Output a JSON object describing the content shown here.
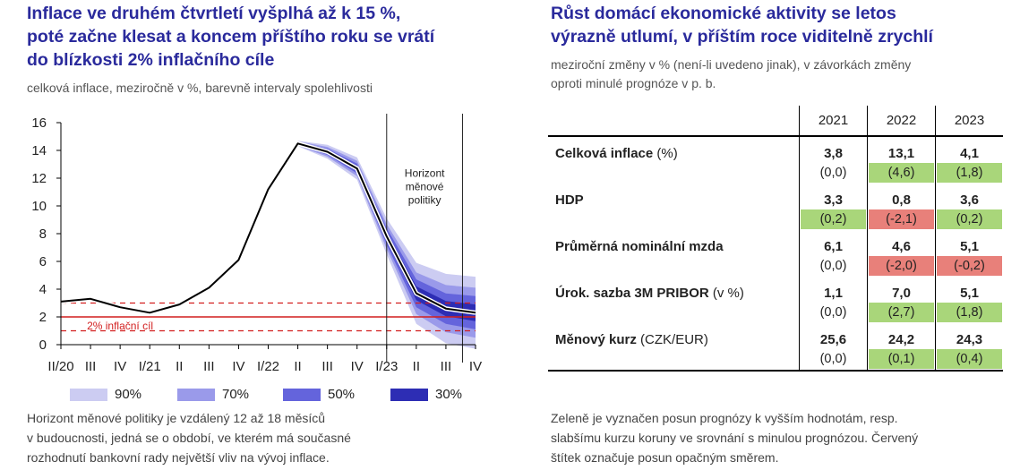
{
  "left": {
    "title_lines": [
      "Inflace ve druhém čtvrtletí vyšplhá až k 15 %,",
      "poté začne klesat a koncem příštího roku se vrátí",
      "do blízkosti 2% inflačního cíle"
    ],
    "subtitle": "celková inflace, meziročně v %, barevně intervaly spolehlivosti",
    "note_lines": [
      "Horizont měnové politiky je vzdálený 12 až 18 měsíců",
      "v budoucnosti, jedná se o období, ve kterém má současné",
      "rozhodnutí bankovní rady největší vliv na vývoj inflace."
    ]
  },
  "chart_data": {
    "type": "line",
    "x": [
      "II/20",
      "III",
      "IV",
      "I/21",
      "II",
      "III",
      "IV",
      "I/22",
      "II",
      "III",
      "IV",
      "I/23",
      "II",
      "III",
      "IV"
    ],
    "series": [
      {
        "values": [
          3.1,
          3.3,
          2.7,
          2.3,
          2.9,
          4.1,
          6.1,
          11.2,
          14.5,
          13.9,
          12.7,
          7.8,
          3.7,
          2.6,
          2.3
        ]
      }
    ],
    "bands": {
      "start_index": 8,
      "levels": [
        "90%",
        "70%",
        "50%",
        "30%"
      ],
      "colors": [
        "#ccccf2",
        "#9a9aea",
        "#6464dc",
        "#2d2db4"
      ],
      "half_widths": {
        "90%": [
          0.2,
          0.5,
          0.8,
          1.3,
          2.2,
          2.5,
          2.6
        ],
        "70%": [
          0.15,
          0.35,
          0.55,
          0.9,
          1.5,
          1.7,
          1.8
        ],
        "50%": [
          0.1,
          0.22,
          0.35,
          0.6,
          1.0,
          1.1,
          1.2
        ],
        "30%": [
          0.05,
          0.1,
          0.2,
          0.3,
          0.5,
          0.55,
          0.6
        ]
      }
    },
    "target": {
      "value": 2,
      "label": "2% inflační cíl",
      "tolerance": [
        1,
        3
      ],
      "color": "#d21e1e"
    },
    "horizon": {
      "label_lines": [
        "Horizont",
        "měnové",
        "politiky"
      ],
      "between_start": 11,
      "between_end": 14
    },
    "ylim": [
      0,
      16
    ],
    "yticks": [
      0,
      2,
      4,
      6,
      8,
      10,
      12,
      14,
      16
    ],
    "grid": false,
    "legend": {
      "placement": "bottom"
    }
  },
  "right": {
    "title_lines": [
      "Růst domácí ekonomické aktivity se letos",
      "výrazně utlumí, v příštím roce viditelně zrychlí"
    ],
    "subtitle_lines": [
      "meziroční změny v % (není-li uvedeno jinak), v závorkách změny",
      "oproti minulé prognóze v p. b."
    ],
    "years": [
      "2021",
      "2022",
      "2023"
    ],
    "rows": [
      {
        "label": "Celková inflace",
        "unit": "(%)",
        "values": [
          "3,8",
          "13,1",
          "4,1"
        ],
        "changes": [
          "(0,0)",
          "(4,6)",
          "(1,8)"
        ],
        "direction": [
          "none",
          "up",
          "up"
        ]
      },
      {
        "label": "HDP",
        "unit": "",
        "values": [
          "3,3",
          "0,8",
          "3,6"
        ],
        "changes": [
          "(0,2)",
          "(-2,1)",
          "(0,2)"
        ],
        "direction": [
          "up",
          "down",
          "up"
        ]
      },
      {
        "label": "Průměrná nominální mzda",
        "unit": "",
        "values": [
          "6,1",
          "4,6",
          "5,1"
        ],
        "changes": [
          "(0,0)",
          "(-2,0)",
          "(-0,2)"
        ],
        "direction": [
          "none",
          "down",
          "down"
        ]
      },
      {
        "label": "Úrok. sazba 3M PRIBOR",
        "unit": "(v %)",
        "values": [
          "1,1",
          "7,0",
          "5,1"
        ],
        "changes": [
          "(0,0)",
          "(2,7)",
          "(1,8)"
        ],
        "direction": [
          "none",
          "up",
          "up"
        ]
      },
      {
        "label": "Měnový kurz",
        "unit": "(CZK/EUR)",
        "values": [
          "25,6",
          "24,2",
          "24,3"
        ],
        "changes": [
          "(0,0)",
          "(0,1)",
          "(0,4)"
        ],
        "direction": [
          "none",
          "up",
          "up"
        ]
      }
    ],
    "note_lines": [
      "Zeleně je vyznačen posun prognózy k vyšším hodnotám, resp.",
      "slabšímu kurzu koruny ve srovnání s minulou prognózou. Červený",
      "štítek označuje posun opačným směrem."
    ],
    "colors": {
      "up": "#a9d67a",
      "down": "#e8807a"
    }
  }
}
